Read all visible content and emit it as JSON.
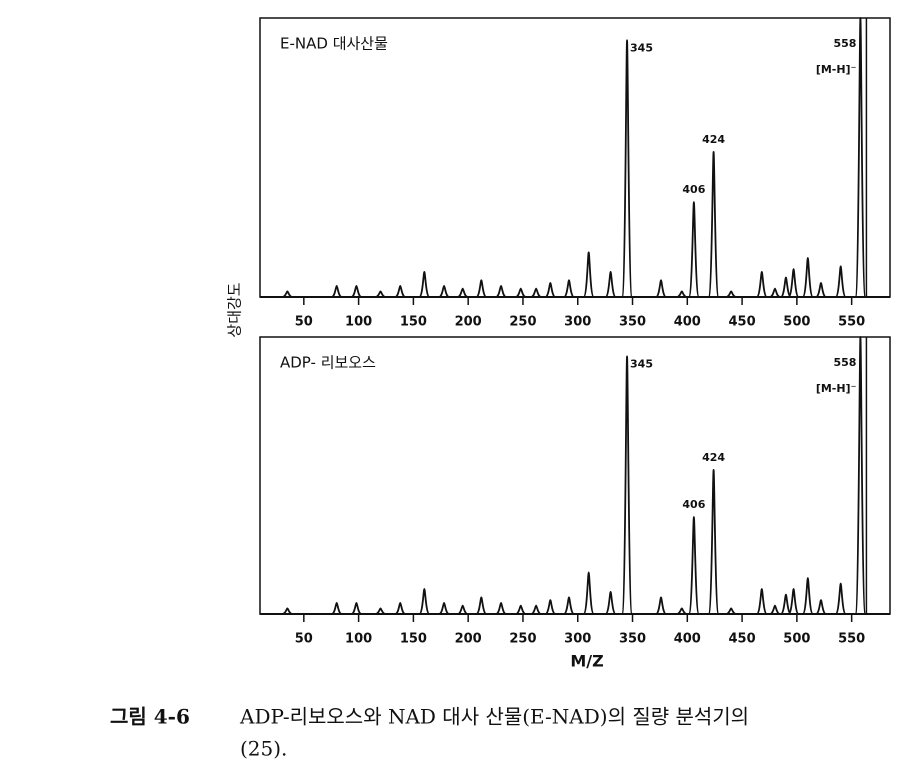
{
  "chart_data": [
    {
      "type": "spectrum",
      "title": "E-NAD 대사산물",
      "x": [
        35,
        80,
        98,
        120,
        138,
        160,
        178,
        195,
        212,
        230,
        248,
        262,
        275,
        292,
        310,
        330,
        345,
        376,
        395,
        406,
        424,
        440,
        468,
        480,
        490,
        497,
        510,
        522,
        540,
        558
      ],
      "values": [
        2,
        4,
        4,
        2,
        4,
        9,
        4,
        3,
        6,
        4,
        3,
        3,
        5,
        6,
        16,
        9,
        92,
        6,
        2,
        34,
        52,
        2,
        9,
        3,
        7,
        10,
        14,
        5,
        11,
        100
      ],
      "labeled": [
        16,
        19,
        20,
        29
      ],
      "annotation": "[M-H]⁻",
      "xlim": [
        10,
        585
      ],
      "ylim": [
        0,
        100
      ],
      "xticks": [
        50,
        100,
        150,
        200,
        250,
        300,
        350,
        400,
        450,
        500,
        550
      ],
      "color": "#111"
    },
    {
      "type": "spectrum",
      "title": "ADP- 리보오스",
      "x": [
        35,
        80,
        98,
        120,
        138,
        160,
        178,
        195,
        212,
        230,
        248,
        262,
        275,
        292,
        310,
        330,
        345,
        376,
        395,
        406,
        424,
        440,
        468,
        480,
        490,
        497,
        510,
        522,
        540,
        558
      ],
      "values": [
        2,
        4,
        4,
        2,
        4,
        9,
        4,
        3,
        6,
        4,
        3,
        3,
        5,
        6,
        15,
        8,
        93,
        6,
        2,
        35,
        52,
        2,
        9,
        3,
        7,
        9,
        13,
        5,
        11,
        100
      ],
      "labeled": [
        16,
        19,
        20,
        29
      ],
      "annotation": "[M-H]⁻",
      "xlim": [
        10,
        585
      ],
      "ylim": [
        0,
        100
      ],
      "xticks": [
        50,
        100,
        150,
        200,
        250,
        300,
        350,
        400,
        450,
        500,
        550
      ],
      "color": "#111",
      "xlabel": "M/Z"
    }
  ],
  "ylabel": "상대강도",
  "caption": {
    "label": "그림 4-6",
    "line1": "ADP-리보오스와 NAD 대사 산물(E-NAD)의 질량 분석기의",
    "line2": "(25)."
  }
}
